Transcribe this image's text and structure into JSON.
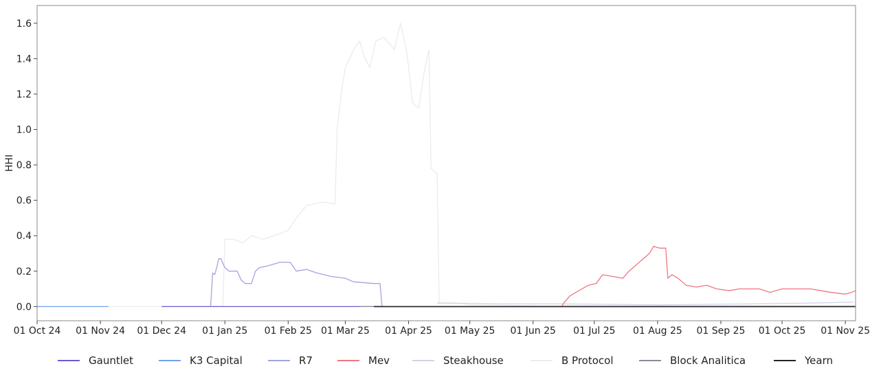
{
  "chart_data": {
    "type": "line",
    "title": "",
    "xlabel": "",
    "ylabel": "HHI",
    "ylim": [
      -0.08,
      1.7
    ],
    "xlim": [
      "2024-10-01",
      "2025-11-06"
    ],
    "y_ticks": [
      0.0,
      0.2,
      0.4,
      0.6,
      0.8,
      1.0,
      1.2,
      1.4,
      1.6
    ],
    "y_tick_labels": [
      "0.0",
      "0.2",
      "0.4",
      "0.6",
      "0.8",
      "1.0",
      "1.2",
      "1.4",
      "1.6"
    ],
    "x_ticks": [
      "2024-10-01",
      "2024-11-01",
      "2024-12-01",
      "2025-01-01",
      "2025-02-01",
      "2025-03-01",
      "2025-04-01",
      "2025-05-01",
      "2025-06-01",
      "2025-07-01",
      "2025-08-01",
      "2025-09-01",
      "2025-10-01",
      "2025-11-01"
    ],
    "x_tick_labels": [
      "01 Oct 24",
      "01 Nov 24",
      "01 Dec 24",
      "01 Jan 25",
      "01 Feb 25",
      "01 Mar 25",
      "01 Apr 25",
      "01 May 25",
      "01 Jun 25",
      "01 Jul 25",
      "01 Aug 25",
      "01 Sep 25",
      "01 Oct 25",
      "01 Nov 25"
    ],
    "grid": false,
    "legend_position": "bottom",
    "series": [
      {
        "name": "Gauntlet",
        "color": "#6a5acd",
        "points": [
          [
            "2024-12-01",
            0.0
          ],
          [
            "2025-03-20",
            0.0
          ]
        ]
      },
      {
        "name": "K3 Capital",
        "color": "#6fa3e8",
        "points": [
          [
            "2024-10-01",
            0.0
          ],
          [
            "2024-11-05",
            0.0
          ]
        ]
      },
      {
        "name": "R7",
        "color": "#a3a3de",
        "points": [
          [
            "2024-12-25",
            0.0
          ],
          [
            "2024-12-26",
            0.19
          ],
          [
            "2024-12-27",
            0.18
          ],
          [
            "2024-12-28",
            0.22
          ],
          [
            "2024-12-29",
            0.27
          ],
          [
            "2024-12-30",
            0.27
          ],
          [
            "2025-01-01",
            0.22
          ],
          [
            "2025-01-03",
            0.2
          ],
          [
            "2025-01-07",
            0.2
          ],
          [
            "2025-01-09",
            0.15
          ],
          [
            "2025-01-11",
            0.13
          ],
          [
            "2025-01-14",
            0.13
          ],
          [
            "2025-01-16",
            0.2
          ],
          [
            "2025-01-18",
            0.22
          ],
          [
            "2025-01-22",
            0.23
          ],
          [
            "2025-01-25",
            0.24
          ],
          [
            "2025-01-28",
            0.25
          ],
          [
            "2025-02-02",
            0.25
          ],
          [
            "2025-02-05",
            0.2
          ],
          [
            "2025-02-10",
            0.21
          ],
          [
            "2025-02-15",
            0.19
          ],
          [
            "2025-02-22",
            0.17
          ],
          [
            "2025-03-01",
            0.16
          ],
          [
            "2025-03-05",
            0.14
          ],
          [
            "2025-03-15",
            0.13
          ],
          [
            "2025-03-18",
            0.13
          ],
          [
            "2025-03-19",
            0.0
          ]
        ]
      },
      {
        "name": "Mev",
        "color": "#ee7680",
        "points": [
          [
            "2025-06-15",
            0.0
          ],
          [
            "2025-06-16",
            0.02
          ],
          [
            "2025-06-19",
            0.06
          ],
          [
            "2025-06-22",
            0.08
          ],
          [
            "2025-06-25",
            0.1
          ],
          [
            "2025-06-28",
            0.12
          ],
          [
            "2025-07-02",
            0.13
          ],
          [
            "2025-07-05",
            0.18
          ],
          [
            "2025-07-10",
            0.17
          ],
          [
            "2025-07-15",
            0.16
          ],
          [
            "2025-07-18",
            0.2
          ],
          [
            "2025-07-22",
            0.24
          ],
          [
            "2025-07-25",
            0.27
          ],
          [
            "2025-07-28",
            0.3
          ],
          [
            "2025-07-30",
            0.34
          ],
          [
            "2025-08-02",
            0.33
          ],
          [
            "2025-08-05",
            0.33
          ],
          [
            "2025-08-06",
            0.16
          ],
          [
            "2025-08-08",
            0.18
          ],
          [
            "2025-08-11",
            0.16
          ],
          [
            "2025-08-15",
            0.12
          ],
          [
            "2025-08-20",
            0.11
          ],
          [
            "2025-08-25",
            0.12
          ],
          [
            "2025-08-30",
            0.1
          ],
          [
            "2025-09-05",
            0.09
          ],
          [
            "2025-09-10",
            0.1
          ],
          [
            "2025-09-20",
            0.1
          ],
          [
            "2025-09-25",
            0.08
          ],
          [
            "2025-10-01",
            0.1
          ],
          [
            "2025-10-10",
            0.1
          ],
          [
            "2025-10-15",
            0.1
          ],
          [
            "2025-10-20",
            0.09
          ],
          [
            "2025-10-25",
            0.08
          ],
          [
            "2025-11-01",
            0.07
          ],
          [
            "2025-11-04",
            0.08
          ],
          [
            "2025-11-06",
            0.09
          ]
        ]
      },
      {
        "name": "Steakhouse",
        "color": "#d2d2e6",
        "points": [
          [
            "2025-04-15",
            0.02
          ],
          [
            "2025-05-15",
            0.015
          ],
          [
            "2025-06-15",
            0.015
          ],
          [
            "2025-08-01",
            0.01
          ],
          [
            "2025-09-15",
            0.015
          ],
          [
            "2025-10-15",
            0.02
          ],
          [
            "2025-11-05",
            0.025
          ]
        ]
      },
      {
        "name": "B Protocol",
        "color": "#ebebeb",
        "points": [
          [
            "2024-11-05",
            0.0
          ],
          [
            "2024-12-31",
            0.0
          ],
          [
            "2025-01-01",
            0.38
          ],
          [
            "2025-01-05",
            0.38
          ],
          [
            "2025-01-10",
            0.36
          ],
          [
            "2025-01-14",
            0.4
          ],
          [
            "2025-01-20",
            0.38
          ],
          [
            "2025-01-25",
            0.4
          ],
          [
            "2025-02-01",
            0.43
          ],
          [
            "2025-02-05",
            0.5
          ],
          [
            "2025-02-10",
            0.57
          ],
          [
            "2025-02-18",
            0.59
          ],
          [
            "2025-02-24",
            0.58
          ],
          [
            "2025-02-25",
            1.0
          ],
          [
            "2025-02-27",
            1.2
          ],
          [
            "2025-03-01",
            1.35
          ],
          [
            "2025-03-05",
            1.45
          ],
          [
            "2025-03-08",
            1.5
          ],
          [
            "2025-03-10",
            1.42
          ],
          [
            "2025-03-13",
            1.35
          ],
          [
            "2025-03-16",
            1.5
          ],
          [
            "2025-03-20",
            1.52
          ],
          [
            "2025-03-25",
            1.45
          ],
          [
            "2025-03-28",
            1.6
          ],
          [
            "2025-03-31",
            1.45
          ],
          [
            "2025-04-03",
            1.15
          ],
          [
            "2025-04-06",
            1.12
          ],
          [
            "2025-04-09",
            1.35
          ],
          [
            "2025-04-11",
            1.45
          ],
          [
            "2025-04-12",
            0.78
          ],
          [
            "2025-04-15",
            0.75
          ],
          [
            "2025-04-16",
            0.02
          ],
          [
            "2025-04-25",
            0.02
          ],
          [
            "2025-05-01",
            0.01
          ],
          [
            "2025-06-01",
            0.005
          ],
          [
            "2025-11-06",
            0.005
          ]
        ]
      },
      {
        "name": "Block Analitica",
        "color": "#8a8a96",
        "points": [
          [
            "2025-03-08",
            0.0
          ],
          [
            "2025-11-06",
            0.0
          ]
        ]
      },
      {
        "name": "Yearn",
        "color": "#222222",
        "points": [
          [
            "2025-03-15",
            0.0
          ],
          [
            "2025-11-06",
            0.0
          ]
        ]
      }
    ]
  }
}
